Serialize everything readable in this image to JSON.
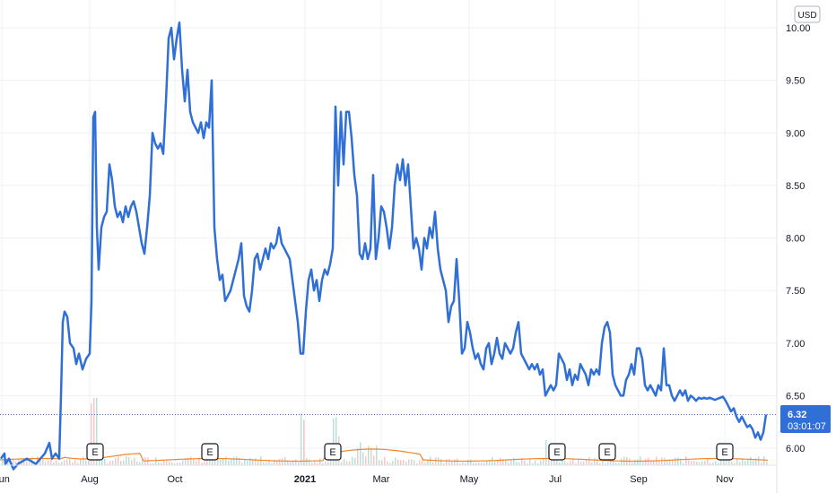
{
  "currency_label": "USD",
  "colors": {
    "line": "#2f6fd6",
    "grid": "#eef1f6",
    "price_tag": "#2f6fd6",
    "volume_up": "#a6d8cf",
    "volume_down": "#f4b9b9",
    "moving_avg": "#f0862c"
  },
  "chart_data": {
    "type": "line",
    "series": [
      {
        "values": [
          [
            1.0,
            5.9
          ],
          [
            5,
            5.95
          ],
          [
            6,
            5.85
          ],
          [
            10,
            5.9
          ],
          [
            15,
            5.8
          ],
          [
            20,
            5.85
          ],
          [
            30,
            5.9
          ],
          [
            40,
            5.85
          ],
          [
            50,
            5.95
          ],
          [
            55,
            6.05
          ],
          [
            58,
            5.9
          ],
          [
            62,
            5.95
          ],
          [
            66,
            5.9
          ],
          [
            68,
            6.5
          ],
          [
            70,
            7.2
          ],
          [
            72,
            7.3
          ],
          [
            75,
            7.25
          ],
          [
            78,
            7.0
          ],
          [
            82,
            6.95
          ],
          [
            85,
            6.8
          ],
          [
            88,
            6.9
          ],
          [
            92,
            6.75
          ],
          [
            96,
            6.85
          ],
          [
            100,
            6.9
          ],
          [
            102,
            7.4
          ],
          [
            104,
            9.15
          ],
          [
            106,
            9.2
          ],
          [
            108,
            8.1
          ],
          [
            110,
            7.7
          ],
          [
            113,
            8.1
          ],
          [
            116,
            8.2
          ],
          [
            119,
            8.25
          ],
          [
            122,
            8.7
          ],
          [
            125,
            8.55
          ],
          [
            128,
            8.3
          ],
          [
            131,
            8.2
          ],
          [
            134,
            8.25
          ],
          [
            137,
            8.15
          ],
          [
            140,
            8.3
          ],
          [
            143,
            8.2
          ],
          [
            146,
            8.3
          ],
          [
            149,
            8.35
          ],
          [
            152,
            8.25
          ],
          [
            155,
            8.1
          ],
          [
            158,
            7.95
          ],
          [
            161,
            7.85
          ],
          [
            164,
            8.1
          ],
          [
            167,
            8.4
          ],
          [
            170,
            9.0
          ],
          [
            173,
            8.9
          ],
          [
            176,
            8.85
          ],
          [
            179,
            8.9
          ],
          [
            182,
            8.8
          ],
          [
            185,
            9.3
          ],
          [
            188,
            9.9
          ],
          [
            191,
            10.0
          ],
          [
            194,
            9.7
          ],
          [
            197,
            9.9
          ],
          [
            200,
            10.05
          ],
          [
            203,
            9.6
          ],
          [
            206,
            9.3
          ],
          [
            209,
            9.6
          ],
          [
            212,
            9.2
          ],
          [
            215,
            9.1
          ],
          [
            218,
            9.05
          ],
          [
            221,
            9.0
          ],
          [
            224,
            9.1
          ],
          [
            227,
            8.95
          ],
          [
            230,
            9.1
          ],
          [
            233,
            9.05
          ],
          [
            236,
            9.5
          ],
          [
            239,
            8.1
          ],
          [
            242,
            7.8
          ],
          [
            245,
            7.6
          ],
          [
            248,
            7.65
          ],
          [
            251,
            7.4
          ],
          [
            254,
            7.45
          ],
          [
            257,
            7.5
          ],
          [
            260,
            7.6
          ],
          [
            263,
            7.7
          ],
          [
            266,
            7.8
          ],
          [
            269,
            7.95
          ],
          [
            272,
            7.45
          ],
          [
            275,
            7.35
          ],
          [
            278,
            7.3
          ],
          [
            281,
            7.5
          ],
          [
            284,
            7.8
          ],
          [
            287,
            7.85
          ],
          [
            290,
            7.7
          ],
          [
            293,
            7.8
          ],
          [
            296,
            7.9
          ],
          [
            299,
            7.8
          ],
          [
            302,
            7.95
          ],
          [
            305,
            7.9
          ],
          [
            308,
            7.95
          ],
          [
            311,
            8.1
          ],
          [
            314,
            7.95
          ],
          [
            317,
            7.9
          ],
          [
            320,
            7.85
          ],
          [
            323,
            7.8
          ],
          [
            326,
            7.6
          ],
          [
            329,
            7.4
          ],
          [
            332,
            7.2
          ],
          [
            335,
            6.9
          ],
          [
            338,
            6.9
          ],
          [
            341,
            7.3
          ],
          [
            344,
            7.6
          ],
          [
            347,
            7.7
          ],
          [
            350,
            7.5
          ],
          [
            353,
            7.6
          ],
          [
            356,
            7.4
          ],
          [
            359,
            7.6
          ],
          [
            362,
            7.7
          ],
          [
            365,
            7.65
          ],
          [
            368,
            7.75
          ],
          [
            371,
            7.9
          ],
          [
            374,
            9.25
          ],
          [
            377,
            8.5
          ],
          [
            380,
            9.2
          ],
          [
            383,
            8.7
          ],
          [
            386,
            9.2
          ],
          [
            389,
            9.2
          ],
          [
            392,
            8.95
          ],
          [
            395,
            8.6
          ],
          [
            398,
            8.4
          ],
          [
            401,
            7.85
          ],
          [
            404,
            7.8
          ],
          [
            407,
            7.95
          ],
          [
            410,
            7.8
          ],
          [
            413,
            7.9
          ],
          [
            416,
            8.6
          ],
          [
            419,
            7.8
          ],
          [
            422,
            8.0
          ],
          [
            425,
            8.3
          ],
          [
            428,
            8.25
          ],
          [
            431,
            8.1
          ],
          [
            434,
            7.9
          ],
          [
            437,
            8.1
          ],
          [
            440,
            8.5
          ],
          [
            443,
            8.7
          ],
          [
            446,
            8.55
          ],
          [
            449,
            8.75
          ],
          [
            452,
            8.5
          ],
          [
            455,
            8.7
          ],
          [
            458,
            8.3
          ],
          [
            461,
            7.9
          ],
          [
            464,
            8.0
          ],
          [
            467,
            7.9
          ],
          [
            470,
            7.7
          ],
          [
            473,
            8.0
          ],
          [
            476,
            7.9
          ],
          [
            479,
            8.1
          ],
          [
            482,
            8.0
          ],
          [
            485,
            8.25
          ],
          [
            488,
            7.9
          ],
          [
            491,
            7.7
          ],
          [
            494,
            7.6
          ],
          [
            497,
            7.5
          ],
          [
            500,
            7.2
          ],
          [
            503,
            7.35
          ],
          [
            506,
            7.4
          ],
          [
            509,
            7.8
          ],
          [
            512,
            7.4
          ],
          [
            515,
            6.9
          ],
          [
            518,
            6.95
          ],
          [
            521,
            7.2
          ],
          [
            524,
            7.1
          ],
          [
            527,
            6.95
          ],
          [
            530,
            6.85
          ],
          [
            533,
            6.9
          ],
          [
            536,
            6.8
          ],
          [
            539,
            6.75
          ],
          [
            542,
            6.95
          ],
          [
            545,
            7.0
          ],
          [
            548,
            6.8
          ],
          [
            551,
            6.9
          ],
          [
            554,
            7.05
          ],
          [
            557,
            6.9
          ],
          [
            560,
            6.85
          ],
          [
            563,
            7.0
          ],
          [
            566,
            6.95
          ],
          [
            569,
            6.9
          ],
          [
            572,
            6.95
          ],
          [
            575,
            7.1
          ],
          [
            578,
            7.2
          ],
          [
            581,
            6.9
          ],
          [
            584,
            6.85
          ],
          [
            587,
            6.8
          ],
          [
            590,
            6.75
          ],
          [
            593,
            6.8
          ],
          [
            596,
            6.75
          ],
          [
            599,
            6.8
          ],
          [
            602,
            6.7
          ],
          [
            605,
            6.75
          ],
          [
            608,
            6.5
          ],
          [
            611,
            6.55
          ],
          [
            614,
            6.6
          ],
          [
            617,
            6.55
          ],
          [
            620,
            6.6
          ],
          [
            623,
            6.9
          ],
          [
            626,
            6.85
          ],
          [
            629,
            6.8
          ],
          [
            632,
            6.65
          ],
          [
            635,
            6.75
          ],
          [
            638,
            6.6
          ],
          [
            641,
            6.7
          ],
          [
            644,
            6.65
          ],
          [
            647,
            6.8
          ],
          [
            650,
            6.75
          ],
          [
            653,
            6.7
          ],
          [
            656,
            6.6
          ],
          [
            659,
            6.75
          ],
          [
            662,
            6.7
          ],
          [
            665,
            6.75
          ],
          [
            668,
            6.7
          ],
          [
            671,
            7.0
          ],
          [
            674,
            7.15
          ],
          [
            677,
            7.2
          ],
          [
            680,
            7.1
          ],
          [
            683,
            6.7
          ],
          [
            686,
            6.6
          ],
          [
            689,
            6.55
          ],
          [
            692,
            6.5
          ],
          [
            695,
            6.5
          ],
          [
            698,
            6.65
          ],
          [
            701,
            6.7
          ],
          [
            704,
            6.8
          ],
          [
            707,
            6.7
          ],
          [
            710,
            6.95
          ],
          [
            713,
            6.95
          ],
          [
            716,
            6.85
          ],
          [
            719,
            6.6
          ],
          [
            722,
            6.55
          ],
          [
            725,
            6.6
          ],
          [
            728,
            6.55
          ],
          [
            731,
            6.5
          ],
          [
            734,
            6.6
          ],
          [
            737,
            6.55
          ],
          [
            740,
            6.95
          ],
          [
            743,
            6.6
          ],
          [
            746,
            6.6
          ],
          [
            749,
            6.5
          ],
          [
            752,
            6.45
          ],
          [
            755,
            6.5
          ],
          [
            758,
            6.55
          ],
          [
            761,
            6.5
          ],
          [
            764,
            6.55
          ],
          [
            767,
            6.45
          ],
          [
            770,
            6.5
          ],
          [
            773,
            6.48
          ],
          [
            776,
            6.45
          ],
          [
            779,
            6.48
          ],
          [
            782,
            6.47
          ],
          [
            785,
            6.48
          ],
          [
            788,
            6.47
          ],
          [
            791,
            6.48
          ],
          [
            794,
            6.47
          ],
          [
            797,
            6.46
          ],
          [
            800,
            6.47
          ],
          [
            803,
            6.48
          ],
          [
            806,
            6.49
          ],
          [
            809,
            6.45
          ],
          [
            812,
            6.4
          ],
          [
            815,
            6.35
          ],
          [
            818,
            6.38
          ],
          [
            821,
            6.3
          ],
          [
            824,
            6.25
          ],
          [
            827,
            6.3
          ],
          [
            830,
            6.25
          ],
          [
            833,
            6.2
          ],
          [
            836,
            6.22
          ],
          [
            839,
            6.18
          ],
          [
            842,
            6.1
          ],
          [
            845,
            6.15
          ],
          [
            848,
            6.08
          ],
          [
            851,
            6.15
          ],
          [
            854,
            6.32
          ]
        ]
      }
    ],
    "x_ticks": [
      {
        "label": "Jun",
        "pos": 2,
        "bold": false
      },
      {
        "label": "Aug",
        "pos": 100,
        "bold": false
      },
      {
        "label": "Oct",
        "pos": 195,
        "bold": false
      },
      {
        "label": "2021",
        "pos": 340,
        "bold": true
      },
      {
        "label": "Mar",
        "pos": 425,
        "bold": false
      },
      {
        "label": "May",
        "pos": 523,
        "bold": false
      },
      {
        "label": "Jul",
        "pos": 619,
        "bold": false
      },
      {
        "label": "Sep",
        "pos": 712,
        "bold": false
      },
      {
        "label": "Nov",
        "pos": 808,
        "bold": false
      }
    ],
    "y_ticks": [
      "10.00",
      "9.50",
      "9.00",
      "8.50",
      "8.00",
      "7.50",
      "7.00",
      "6.50",
      "6.00"
    ],
    "ylim": [
      5.8,
      10.1
    ],
    "last_price": "6.32",
    "countdown": "03:01:07",
    "earnings_markers": [
      {
        "label": "E",
        "pos": 106
      },
      {
        "label": "E",
        "pos": 234
      },
      {
        "label": "E",
        "pos": 371
      },
      {
        "label": "E",
        "pos": 621
      },
      {
        "label": "E",
        "pos": 677
      },
      {
        "label": "E",
        "pos": 808
      }
    ]
  }
}
